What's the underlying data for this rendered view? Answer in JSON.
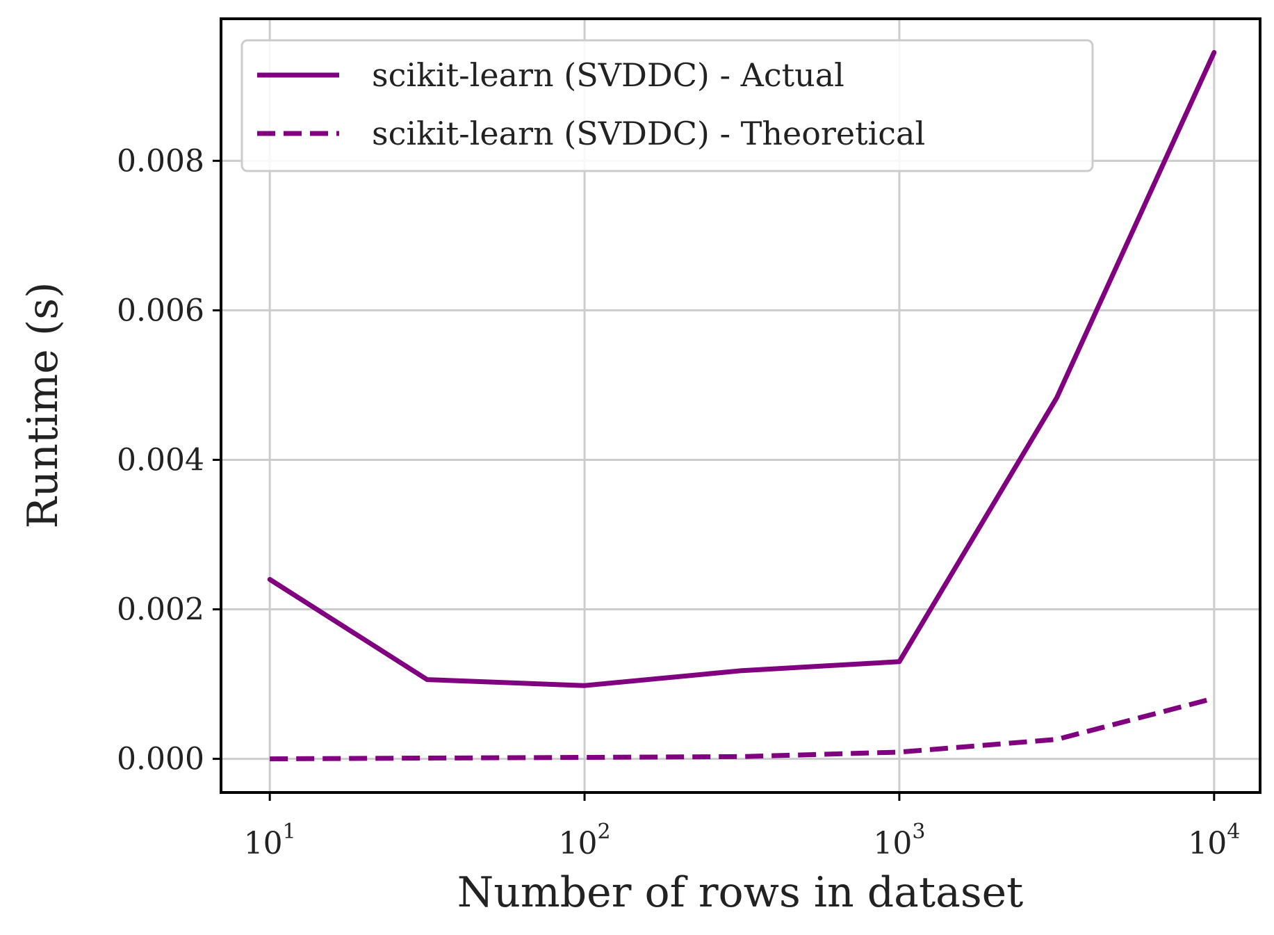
{
  "chart_data": {
    "type": "line",
    "xlabel": "Number of rows in dataset",
    "ylabel": "Runtime (s)",
    "x_scale": "log",
    "xlim": [
      7,
      14000
    ],
    "ylim": [
      -0.00045,
      0.0099
    ],
    "grid": true,
    "legend_position": "top-left",
    "x_ticks": [
      {
        "value": 10,
        "base": "10",
        "exp": "1"
      },
      {
        "value": 100,
        "base": "10",
        "exp": "2"
      },
      {
        "value": 1000,
        "base": "10",
        "exp": "3"
      },
      {
        "value": 10000,
        "base": "10",
        "exp": "4"
      }
    ],
    "y_ticks": [
      {
        "value": 0.0,
        "label": "0.000"
      },
      {
        "value": 0.002,
        "label": "0.002"
      },
      {
        "value": 0.004,
        "label": "0.004"
      },
      {
        "value": 0.006,
        "label": "0.006"
      },
      {
        "value": 0.008,
        "label": "0.008"
      }
    ],
    "x": [
      10,
      31.6,
      100,
      316,
      1000,
      3162,
      10000
    ],
    "series": [
      {
        "name": "scikit-learn (SVDDC) - Actual",
        "style": "solid",
        "color": "#800080",
        "values": [
          0.0024,
          0.00106,
          0.00098,
          0.00118,
          0.0013,
          0.00483,
          0.00945
        ]
      },
      {
        "name": "scikit-learn (SVDDC) - Theoretical",
        "style": "dashed",
        "color": "#800080",
        "values": [
          0.0,
          1e-05,
          2e-05,
          3e-05,
          9e-05,
          0.00026,
          0.00081
        ]
      }
    ]
  }
}
